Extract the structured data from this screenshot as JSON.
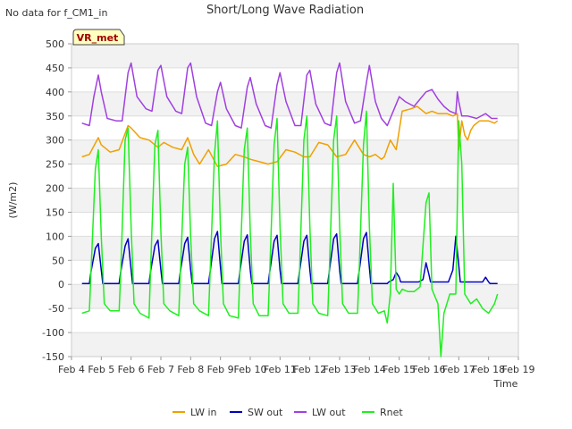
{
  "no_data_note": "No data for f_CM1_in",
  "site_badge": "VR_met",
  "chart_data": {
    "type": "line",
    "title": "Short/Long Wave Radiation",
    "xlabel": "Time",
    "ylabel": "(W/m2)",
    "xlim": [
      4,
      19
    ],
    "ylim": [
      -150,
      500
    ],
    "y_ticks": [
      -150,
      -100,
      -50,
      0,
      50,
      100,
      150,
      200,
      250,
      300,
      350,
      400,
      450,
      500
    ],
    "x_ticks": [
      {
        "v": 4,
        "label": "Feb 4"
      },
      {
        "v": 5,
        "label": "Feb 5"
      },
      {
        "v": 6,
        "label": "Feb 6"
      },
      {
        "v": 7,
        "label": "Feb 7"
      },
      {
        "v": 8,
        "label": "Feb 8"
      },
      {
        "v": 9,
        "label": "Feb 9"
      },
      {
        "v": 10,
        "label": "Feb 10"
      },
      {
        "v": 11,
        "label": "Feb 11"
      },
      {
        "v": 12,
        "label": "Feb 12"
      },
      {
        "v": 13,
        "label": "Feb 13"
      },
      {
        "v": 14,
        "label": "Feb 14"
      },
      {
        "v": 15,
        "label": "Feb 15"
      },
      {
        "v": 16,
        "label": "Feb 16"
      },
      {
        "v": 17,
        "label": "Feb 17"
      },
      {
        "v": 18,
        "label": "Feb 18"
      },
      {
        "v": 19,
        "label": "Feb 19"
      }
    ],
    "grid": true,
    "legend_position": "bottom",
    "series": [
      {
        "name": "LW in",
        "color": "#f0a000",
        "x": [
          4.35,
          4.6,
          4.9,
          5.0,
          5.3,
          5.6,
          5.9,
          6.0,
          6.3,
          6.6,
          6.9,
          7.1,
          7.4,
          7.7,
          7.9,
          8.1,
          8.3,
          8.6,
          8.9,
          9.2,
          9.5,
          9.8,
          10.0,
          10.3,
          10.6,
          10.9,
          11.2,
          11.5,
          11.8,
          12.0,
          12.3,
          12.6,
          12.9,
          13.2,
          13.5,
          13.8,
          14.0,
          14.2,
          14.4,
          14.5,
          14.7,
          14.9,
          15.1,
          15.4,
          15.6,
          15.9,
          16.1,
          16.3,
          16.6,
          16.8,
          16.95,
          17.0,
          17.1,
          17.2,
          17.3,
          17.4,
          17.5,
          17.7,
          18.0,
          18.2,
          18.3
        ],
        "y": [
          265,
          270,
          305,
          290,
          275,
          280,
          330,
          325,
          305,
          300,
          285,
          295,
          285,
          280,
          305,
          270,
          250,
          280,
          245,
          250,
          270,
          265,
          260,
          255,
          250,
          255,
          280,
          275,
          265,
          265,
          295,
          290,
          265,
          270,
          300,
          270,
          265,
          270,
          260,
          265,
          300,
          280,
          360,
          365,
          370,
          355,
          360,
          355,
          355,
          350,
          355,
          280,
          340,
          310,
          300,
          320,
          330,
          340,
          340,
          335,
          340
        ]
      },
      {
        "name": "SW out",
        "color": "#0000c0",
        "x": [
          4.35,
          4.6,
          4.65,
          4.8,
          4.9,
          5.0,
          5.05,
          5.2,
          5.3,
          5.6,
          5.65,
          5.8,
          5.9,
          6.0,
          6.05,
          6.2,
          6.3,
          6.6,
          6.65,
          6.8,
          6.9,
          7.0,
          7.05,
          7.2,
          7.3,
          7.6,
          7.65,
          7.8,
          7.9,
          8.0,
          8.05,
          8.2,
          8.3,
          8.6,
          8.65,
          8.8,
          8.9,
          9.0,
          9.05,
          9.2,
          9.3,
          9.6,
          9.65,
          9.8,
          9.9,
          10.0,
          10.05,
          10.2,
          10.3,
          10.6,
          10.65,
          10.8,
          10.9,
          11.0,
          11.05,
          11.2,
          11.3,
          11.6,
          11.65,
          11.8,
          11.9,
          12.0,
          12.05,
          12.2,
          12.3,
          12.6,
          12.65,
          12.8,
          12.9,
          13.0,
          13.05,
          13.2,
          13.3,
          13.6,
          13.65,
          13.8,
          13.9,
          14.0,
          14.05,
          14.2,
          14.3,
          14.6,
          14.65,
          14.8,
          14.9,
          15.0,
          15.05,
          15.2,
          15.3,
          15.6,
          15.65,
          15.8,
          15.9,
          16.0,
          16.05,
          16.2,
          16.3,
          16.6,
          16.65,
          16.8,
          16.9,
          17.0,
          17.05,
          17.2,
          17.3,
          17.6,
          17.65,
          17.8,
          17.9,
          18.0,
          18.05,
          18.2,
          18.3
        ],
        "y": [
          2,
          2,
          25,
          75,
          85,
          30,
          2,
          2,
          2,
          2,
          25,
          80,
          95,
          30,
          2,
          2,
          2,
          2,
          25,
          80,
          92,
          30,
          2,
          2,
          2,
          2,
          25,
          85,
          98,
          30,
          2,
          2,
          2,
          2,
          25,
          95,
          110,
          35,
          2,
          2,
          2,
          2,
          25,
          90,
          103,
          30,
          2,
          2,
          2,
          2,
          25,
          90,
          102,
          30,
          2,
          2,
          2,
          2,
          25,
          90,
          102,
          30,
          2,
          2,
          2,
          2,
          25,
          95,
          105,
          30,
          2,
          2,
          2,
          2,
          25,
          95,
          108,
          35,
          2,
          2,
          2,
          2,
          5,
          10,
          25,
          15,
          5,
          5,
          5,
          5,
          5,
          10,
          45,
          20,
          5,
          5,
          5,
          5,
          5,
          30,
          100,
          40,
          5,
          5,
          5,
          5,
          5,
          5,
          15,
          5,
          2,
          2,
          2
        ]
      },
      {
        "name": "LW out",
        "color": "#a040e0",
        "x": [
          4.35,
          4.6,
          4.75,
          4.9,
          5.0,
          5.2,
          5.5,
          5.7,
          5.9,
          6.0,
          6.2,
          6.5,
          6.7,
          6.9,
          7.0,
          7.2,
          7.5,
          7.7,
          7.9,
          8.0,
          8.2,
          8.5,
          8.7,
          8.9,
          9.0,
          9.2,
          9.5,
          9.7,
          9.9,
          10.0,
          10.2,
          10.5,
          10.7,
          10.9,
          11.0,
          11.2,
          11.5,
          11.7,
          11.9,
          12.0,
          12.2,
          12.5,
          12.7,
          12.9,
          13.0,
          13.2,
          13.5,
          13.7,
          13.9,
          14.0,
          14.2,
          14.4,
          14.6,
          14.8,
          15.0,
          15.2,
          15.5,
          15.7,
          15.9,
          16.1,
          16.3,
          16.5,
          16.7,
          16.9,
          16.95,
          17.0,
          17.1,
          17.3,
          17.6,
          17.9,
          18.1,
          18.3
        ],
        "y": [
          335,
          330,
          390,
          435,
          400,
          345,
          340,
          340,
          440,
          460,
          390,
          365,
          360,
          445,
          455,
          390,
          360,
          355,
          450,
          460,
          390,
          335,
          330,
          400,
          420,
          365,
          330,
          325,
          410,
          430,
          375,
          330,
          325,
          415,
          440,
          380,
          330,
          330,
          435,
          445,
          375,
          335,
          330,
          440,
          460,
          380,
          335,
          340,
          420,
          455,
          380,
          345,
          330,
          360,
          390,
          380,
          370,
          385,
          400,
          405,
          385,
          370,
          360,
          355,
          400,
          380,
          350,
          350,
          345,
          355,
          345,
          345
        ]
      },
      {
        "name": "Rnet",
        "color": "#20ee20",
        "x": [
          4.35,
          4.6,
          4.65,
          4.8,
          4.9,
          5.0,
          5.1,
          5.3,
          5.6,
          5.65,
          5.8,
          5.9,
          6.0,
          6.1,
          6.3,
          6.6,
          6.65,
          6.8,
          6.9,
          7.0,
          7.1,
          7.3,
          7.6,
          7.65,
          7.8,
          7.9,
          8.0,
          8.1,
          8.3,
          8.6,
          8.65,
          8.8,
          8.9,
          9.0,
          9.1,
          9.3,
          9.6,
          9.65,
          9.8,
          9.9,
          10.0,
          10.1,
          10.3,
          10.6,
          10.65,
          10.8,
          10.9,
          11.0,
          11.1,
          11.3,
          11.6,
          11.65,
          11.8,
          11.9,
          12.0,
          12.1,
          12.3,
          12.6,
          12.65,
          12.8,
          12.9,
          13.0,
          13.1,
          13.3,
          13.6,
          13.65,
          13.8,
          13.9,
          14.0,
          14.1,
          14.3,
          14.5,
          14.6,
          14.7,
          14.8,
          14.9,
          15.0,
          15.1,
          15.3,
          15.5,
          15.7,
          15.9,
          16.0,
          16.1,
          16.3,
          16.4,
          16.5,
          16.7,
          16.9,
          17.0,
          17.1,
          17.2,
          17.4,
          17.6,
          17.8,
          18.0,
          18.2,
          18.3
        ],
        "y": [
          -60,
          -55,
          20,
          240,
          280,
          100,
          -40,
          -55,
          -55,
          20,
          300,
          325,
          120,
          -40,
          -60,
          -70,
          20,
          290,
          320,
          110,
          -40,
          -55,
          -65,
          20,
          250,
          285,
          100,
          -40,
          -55,
          -65,
          20,
          270,
          340,
          110,
          -40,
          -65,
          -70,
          20,
          280,
          325,
          110,
          -40,
          -65,
          -65,
          20,
          290,
          345,
          120,
          -40,
          -60,
          -60,
          20,
          300,
          350,
          120,
          -40,
          -60,
          -65,
          20,
          300,
          350,
          120,
          -40,
          -60,
          -60,
          20,
          290,
          360,
          120,
          -40,
          -60,
          -55,
          -80,
          -20,
          210,
          -10,
          -20,
          -10,
          -15,
          -15,
          -5,
          170,
          190,
          -10,
          -40,
          -150,
          -60,
          -20,
          -20,
          340,
          250,
          -20,
          -40,
          -30,
          -50,
          -60,
          -40,
          -20
        ]
      }
    ]
  }
}
